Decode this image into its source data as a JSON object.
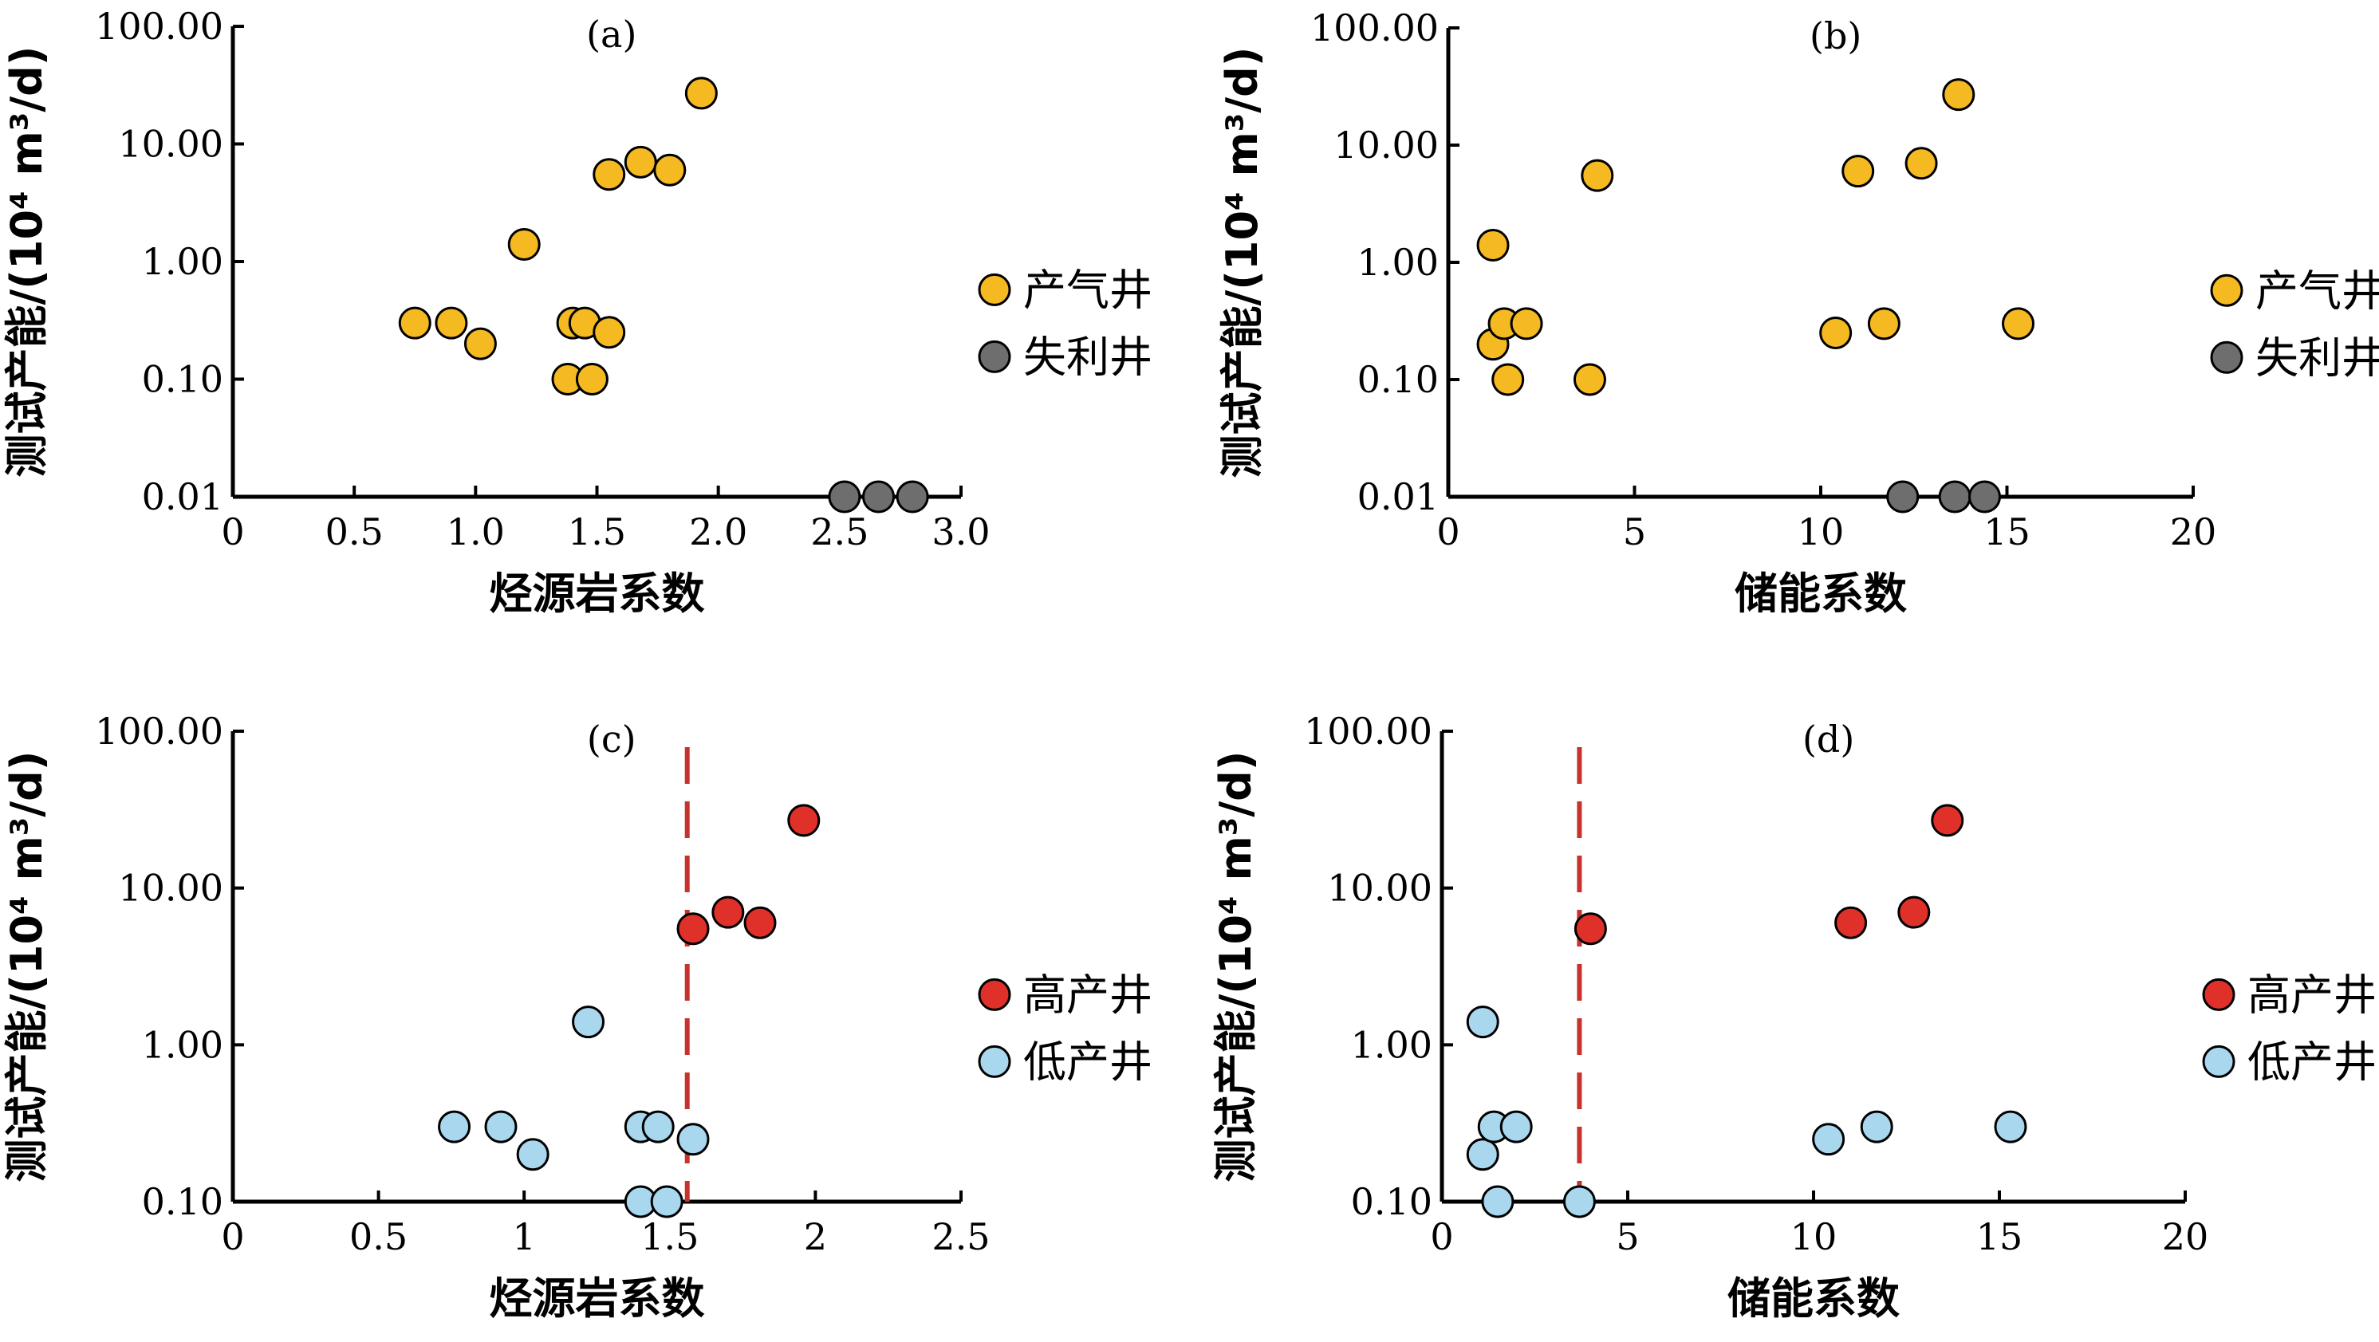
{
  "colors": {
    "gas_well": "#F5B921",
    "failed_well": "#6E6E6E",
    "high_well": "#E0302A",
    "low_well": "#A9D7EE",
    "threshold": "#C8322C",
    "axis": "#000000"
  },
  "chart_data": [
    {
      "id": "a",
      "type": "scatter",
      "panel_label": "(a)",
      "xlabel": "烃源岩系数",
      "ylabel": "测试产能/(10⁴ m³/d)",
      "x_scale": "linear",
      "y_scale": "log",
      "xlim": [
        0,
        3.0
      ],
      "ylim": [
        0.01,
        100
      ],
      "x_ticks": [
        "0",
        "0.5",
        "1.0",
        "1.5",
        "2.0",
        "2.5",
        "3.0"
      ],
      "y_ticks": [
        "0.01",
        "0.10",
        "1.00",
        "10.00",
        "100.00"
      ],
      "legend": "right",
      "series": [
        {
          "name": "产气井",
          "points": [
            [
              0.75,
              0.3
            ],
            [
              0.9,
              0.3
            ],
            [
              1.02,
              0.2
            ],
            [
              1.2,
              1.4
            ],
            [
              1.38,
              0.1
            ],
            [
              1.4,
              0.3
            ],
            [
              1.45,
              0.3
            ],
            [
              1.48,
              0.1
            ],
            [
              1.55,
              0.25
            ],
            [
              1.55,
              5.5
            ],
            [
              1.68,
              7.0
            ],
            [
              1.8,
              6.0
            ],
            [
              1.93,
              27.0
            ]
          ]
        },
        {
          "name": "失利井",
          "points": [
            [
              2.52,
              0.01
            ],
            [
              2.66,
              0.01
            ],
            [
              2.8,
              0.01
            ]
          ]
        }
      ]
    },
    {
      "id": "b",
      "type": "scatter",
      "panel_label": "(b)",
      "xlabel": "储能系数",
      "ylabel": "测试产能/(10⁴ m³/d)",
      "x_scale": "linear",
      "y_scale": "log",
      "xlim": [
        0,
        20
      ],
      "ylim": [
        0.01,
        100
      ],
      "x_ticks": [
        "0",
        "5",
        "10",
        "15",
        "20"
      ],
      "y_ticks": [
        "0.01",
        "0.10",
        "1.00",
        "10.00",
        "100.00"
      ],
      "legend": "right",
      "series": [
        {
          "name": "产气井",
          "points": [
            [
              1.2,
              1.4
            ],
            [
              1.2,
              0.2
            ],
            [
              1.5,
              0.3
            ],
            [
              1.6,
              0.1
            ],
            [
              2.1,
              0.3
            ],
            [
              3.8,
              0.1
            ],
            [
              4.0,
              5.5
            ],
            [
              10.4,
              0.25
            ],
            [
              11.0,
              6.0
            ],
            [
              11.7,
              0.3
            ],
            [
              12.7,
              7.0
            ],
            [
              13.7,
              27.0
            ],
            [
              15.3,
              0.3
            ]
          ]
        },
        {
          "name": "失利井",
          "points": [
            [
              12.2,
              0.01
            ],
            [
              13.6,
              0.01
            ],
            [
              14.4,
              0.01
            ]
          ]
        }
      ]
    },
    {
      "id": "c",
      "type": "scatter",
      "panel_label": "(c)",
      "xlabel": "烃源岩系数",
      "ylabel": "测试产能/(10⁴ m³/d)",
      "x_scale": "linear",
      "y_scale": "log",
      "xlim": [
        0,
        2.5
      ],
      "ylim": [
        0.1,
        100
      ],
      "x_ticks": [
        "0",
        "0.5",
        "1",
        "1.5",
        "2",
        "2.5"
      ],
      "y_ticks": [
        "0.10",
        "1.00",
        "10.00",
        "100.00"
      ],
      "legend": "right",
      "threshold_x": 1.56,
      "series": [
        {
          "name": "高产井",
          "points": [
            [
              1.58,
              5.5
            ],
            [
              1.7,
              7.0
            ],
            [
              1.81,
              6.0
            ],
            [
              1.96,
              27.0
            ]
          ]
        },
        {
          "name": "低产井",
          "points": [
            [
              0.76,
              0.3
            ],
            [
              0.92,
              0.3
            ],
            [
              1.03,
              0.2
            ],
            [
              1.22,
              1.4
            ],
            [
              1.4,
              0.1
            ],
            [
              1.4,
              0.3
            ],
            [
              1.46,
              0.3
            ],
            [
              1.49,
              0.1
            ],
            [
              1.58,
              0.25
            ]
          ]
        }
      ]
    },
    {
      "id": "d",
      "type": "scatter",
      "panel_label": "(d)",
      "xlabel": "储能系数",
      "ylabel": "测试产能/(10⁴ m³/d)",
      "x_scale": "linear",
      "y_scale": "log",
      "xlim": [
        0,
        20
      ],
      "ylim": [
        0.1,
        100
      ],
      "x_ticks": [
        "0",
        "5",
        "10",
        "15",
        "20"
      ],
      "y_ticks": [
        "0.10",
        "1.00",
        "10.00",
        "100.00"
      ],
      "legend": "right",
      "threshold_x": 3.7,
      "series": [
        {
          "name": "高产井",
          "points": [
            [
              4.0,
              5.5
            ],
            [
              11.0,
              6.0
            ],
            [
              12.7,
              7.0
            ],
            [
              13.6,
              27.0
            ]
          ]
        },
        {
          "name": "低产井",
          "points": [
            [
              1.1,
              1.4
            ],
            [
              1.1,
              0.2
            ],
            [
              1.4,
              0.3
            ],
            [
              1.5,
              0.1
            ],
            [
              2.0,
              0.3
            ],
            [
              3.7,
              0.1
            ],
            [
              10.4,
              0.25
            ],
            [
              11.7,
              0.3
            ],
            [
              15.3,
              0.3
            ]
          ]
        }
      ]
    }
  ]
}
